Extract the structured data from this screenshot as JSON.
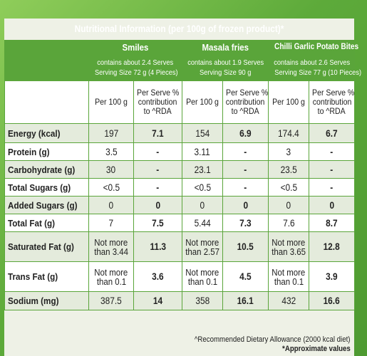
{
  "title": "Nutritional Information (per 100g of frozen product)*",
  "products": [
    {
      "name": "Smiles",
      "serves": "contains about 2.4 Serves",
      "serving_size": "Serving Size 72 g (4 Pieces)"
    },
    {
      "name": "Masala fries",
      "serves": "contains about 1.9 Serves",
      "serving_size": "Serving Size 90 g"
    },
    {
      "name": "Chilli Garlic Potato Bites",
      "serves": "contains about 2.6 Serves",
      "serving_size": "Serving Size 77 g (10 Pieces)"
    }
  ],
  "column_headers": {
    "per100": "Per 100 g",
    "perserve_1": "Per Serve %",
    "perserve_2": "contribution",
    "perserve_3": "to ^RDA"
  },
  "rows": [
    {
      "label": "Energy (kcal)",
      "values": [
        "197",
        "7.1",
        "154",
        "6.9",
        "174.4",
        "6.7"
      ]
    },
    {
      "label": "Protein (g)",
      "values": [
        "3.5",
        "-",
        "3.11",
        "-",
        "3",
        "-"
      ]
    },
    {
      "label": "Carbohydrate (g)",
      "values": [
        "30",
        "-",
        "23.1",
        "-",
        "23.5",
        "-"
      ]
    },
    {
      "label": "Total Sugars (g)",
      "values": [
        "<0.5",
        "-",
        "<0.5",
        "-",
        "<0.5",
        "-"
      ]
    },
    {
      "label": "Added Sugars (g)",
      "values": [
        "0",
        "0",
        "0",
        "0",
        "0",
        "0"
      ]
    },
    {
      "label": "Total Fat (g)",
      "values": [
        "7",
        "7.5",
        "5.44",
        "7.3",
        "7.6",
        "8.7"
      ]
    },
    {
      "label": "Saturated Fat (g)",
      "values": [
        "Not more|than 3.44",
        "11.3",
        "Not more|than 2.57",
        "10.5",
        "Not more|than 3.65",
        "12.8"
      ]
    },
    {
      "label": "Trans Fat (g)",
      "values": [
        "Not more|than 0.1",
        "3.6",
        "Not more|than 0.1",
        "4.5",
        "Not more|than 0.1",
        "3.9"
      ]
    },
    {
      "label": "Sodium (mg)",
      "values": [
        "387.5",
        "14",
        "358",
        "16.1",
        "432",
        "16.6"
      ]
    }
  ],
  "footnote_rda": "^Recommended Dietary Allowance (2000 kcal diet)",
  "footnote_approx": "*Approximate values",
  "colors": {
    "green": "#5aa53a",
    "panel": "#eef1e6"
  }
}
